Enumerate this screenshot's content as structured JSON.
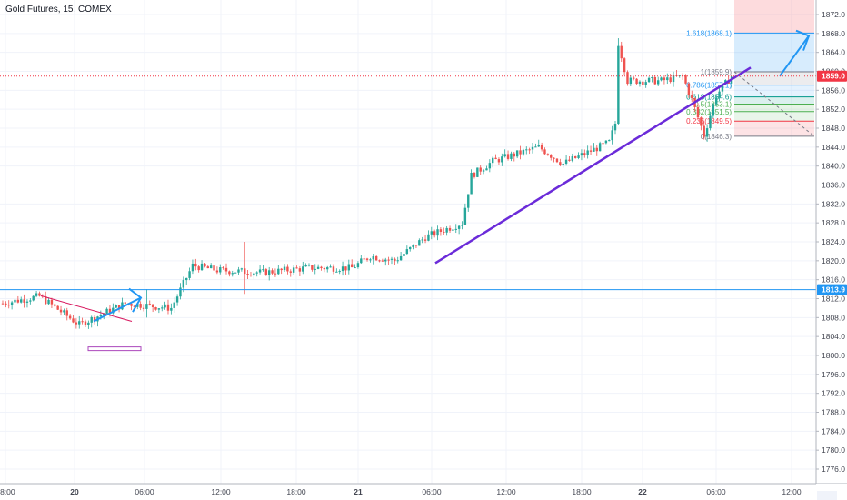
{
  "title": "Gold Futures, 15, COMEX",
  "colors": {
    "up": "#26a69a",
    "down": "#ef5350",
    "trend": "#6b2bd9",
    "hline": "#2196f3",
    "price_line": "#f23645",
    "projection": "#2196f3"
  },
  "chart_data": {
    "type": "candlestick",
    "ylim": [
      1772,
      1874
    ],
    "y_ticks": [
      "1872.0",
      "1868.0",
      "1864.0",
      "1860.0",
      "1856.0",
      "1852.0",
      "1848.0",
      "1844.0",
      "1840.0",
      "1836.0",
      "1832.0",
      "1828.0",
      "1824.0",
      "1820.0",
      "1816.0",
      "1812.0",
      "1808.0",
      "1804.0",
      "1800.0",
      "1796.0",
      "1792.0",
      "1788.0",
      "1784.0",
      "1780.0",
      "1776.0"
    ],
    "x_ticks": [
      "18:00",
      "20",
      "06:00",
      "12:00",
      "18:00",
      "21",
      "06:00",
      "12:00",
      "18:00",
      "22",
      "06:00",
      "12:00"
    ],
    "current_price": "1859.0",
    "horizontal_level": "1813.9",
    "anchors": [
      {
        "t": 0,
        "p": 1811
      },
      {
        "t": 12,
        "p": 1812.5
      },
      {
        "t": 25,
        "p": 1806.5
      },
      {
        "t": 40,
        "p": 1811
      },
      {
        "t": 55,
        "p": 1810
      },
      {
        "t": 62,
        "p": 1819
      },
      {
        "t": 70,
        "p": 1818
      },
      {
        "t": 85,
        "p": 1817.5
      },
      {
        "t": 100,
        "p": 1818.5
      },
      {
        "t": 114,
        "p": 1818.5
      },
      {
        "t": 120,
        "p": 1821
      },
      {
        "t": 128,
        "p": 1820
      },
      {
        "t": 138,
        "p": 1825
      },
      {
        "t": 150,
        "p": 1828
      },
      {
        "t": 153,
        "p": 1838
      },
      {
        "t": 160,
        "p": 1841
      },
      {
        "t": 175,
        "p": 1844
      },
      {
        "t": 183,
        "p": 1840.5
      },
      {
        "t": 198,
        "p": 1845
      },
      {
        "t": 200,
        "p": 1849
      },
      {
        "t": 201,
        "p": 1866
      },
      {
        "t": 204,
        "p": 1858
      },
      {
        "t": 215,
        "p": 1858
      },
      {
        "t": 222,
        "p": 1859
      },
      {
        "t": 225,
        "p": 1854
      },
      {
        "t": 229,
        "p": 1846.5
      },
      {
        "t": 233,
        "p": 1855
      },
      {
        "t": 238,
        "p": 1859
      }
    ],
    "fibonacci": {
      "levels": [
        {
          "label": "1.618(1868.1)",
          "value": 1868.1,
          "color": "#2196f3"
        },
        {
          "label": "1(1859.9)",
          "value": 1859.9,
          "color": "#787b86"
        },
        {
          "label": "0.786(1857.1)",
          "value": 1857.1,
          "color": "#2196f3"
        },
        {
          "label": "0.618(1854.6)",
          "value": 1854.6,
          "color": "#009688"
        },
        {
          "label": "0.5(1853.1)",
          "value": 1853.1,
          "color": "#4caf50"
        },
        {
          "label": "0.382(1851.5)",
          "value": 1851.5,
          "color": "#4caf50"
        },
        {
          "label": "0.236(1849.5)",
          "value": 1849.5,
          "color": "#f23645"
        },
        {
          "label": "0(1846.3)",
          "value": 1846.3,
          "color": "#787b86"
        }
      ]
    }
  }
}
